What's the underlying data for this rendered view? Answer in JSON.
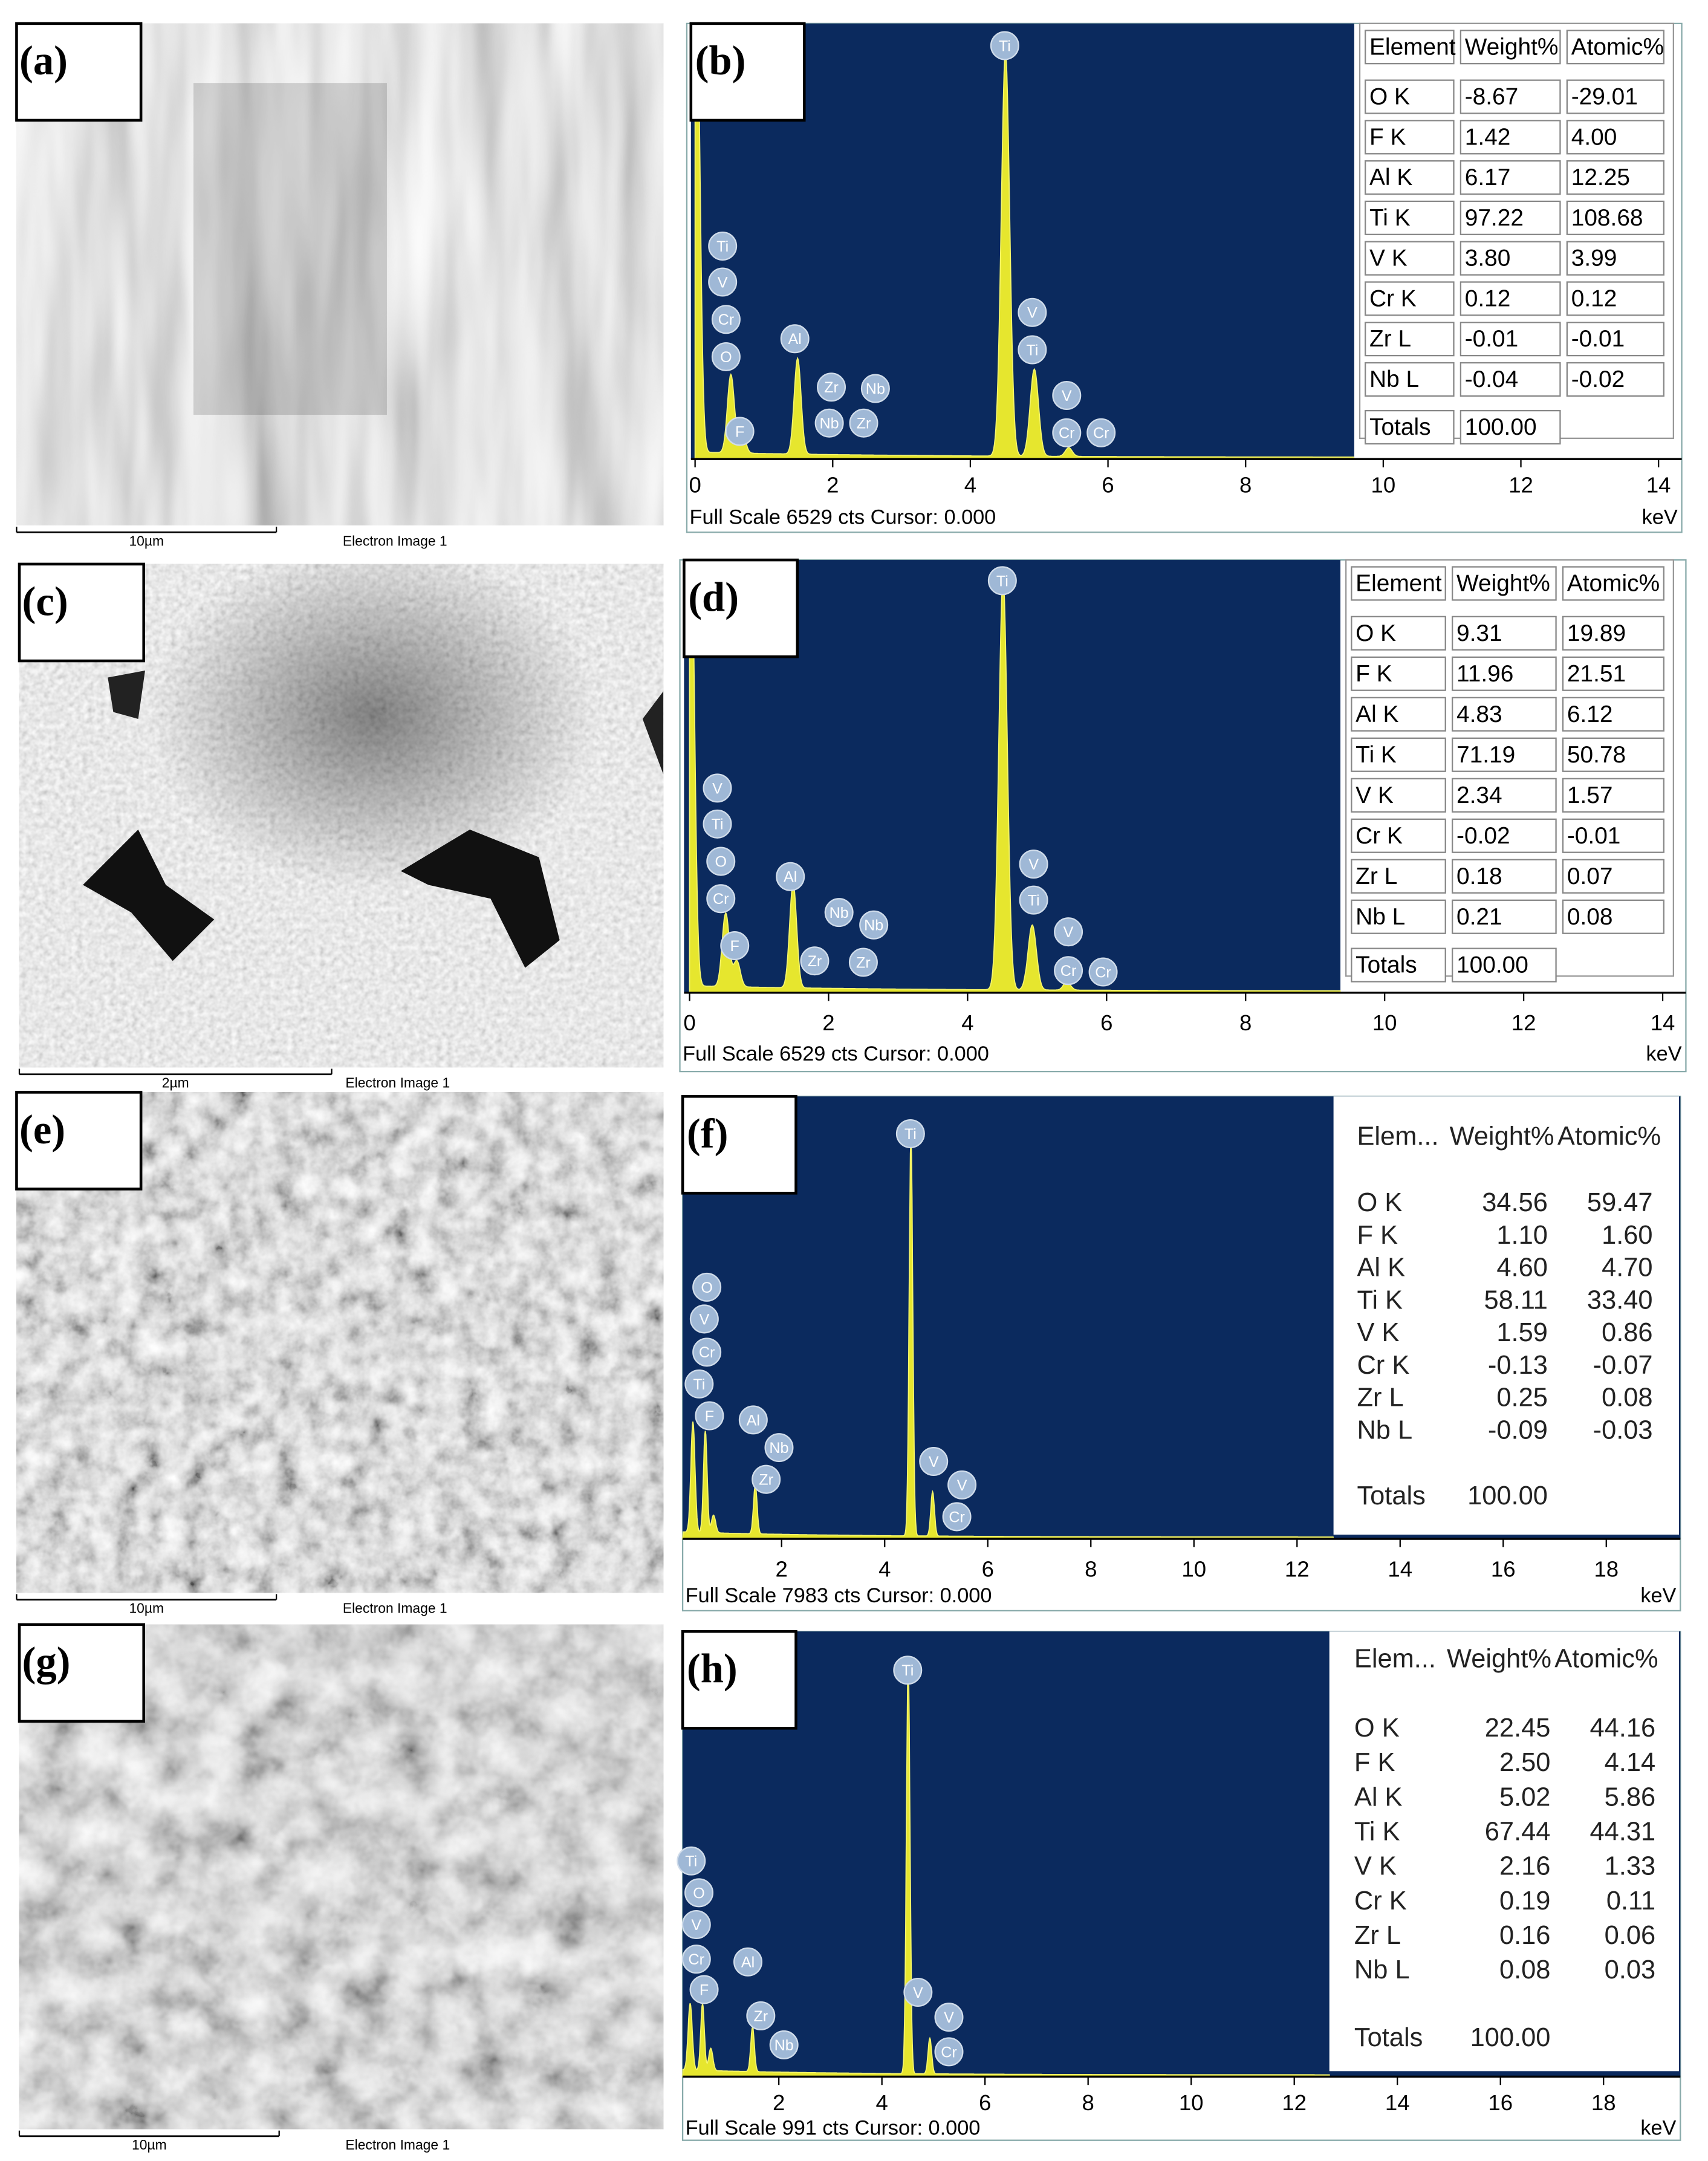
{
  "sem_images": [
    {
      "label": "(a)",
      "scale_bar": "10µm",
      "caption": "Electron Image 1"
    },
    {
      "label": "(c)",
      "scale_bar": "2µm",
      "caption": "Electron Image 1"
    },
    {
      "label": "(e)",
      "scale_bar": "10µm",
      "caption": "Electron Image 1"
    },
    {
      "label": "(g)",
      "scale_bar": "10µm",
      "caption": "Electron Image 1"
    }
  ],
  "spectra": [
    {
      "label": "(b)",
      "xticks": [
        0,
        2,
        4,
        6,
        8,
        10,
        12,
        14
      ],
      "axis_unit": "keV",
      "footer": "Full Scale 6529 cts Cursor: 0.000",
      "peak_labels": [
        "Ti",
        "Ti",
        "V",
        "Cr",
        "O",
        "Al",
        "F",
        "Zr",
        "Nb",
        "Nb",
        "Zr",
        "V",
        "Ti",
        "V",
        "Cr",
        "Cr"
      ],
      "table": {
        "header": [
          "Element",
          "Weight%",
          "Atomic%"
        ],
        "rows": [
          [
            "O K",
            "-8.67",
            "-29.01"
          ],
          [
            "F K",
            "1.42",
            "4.00"
          ],
          [
            "Al K",
            "6.17",
            "12.25"
          ],
          [
            "Ti K",
            "97.22",
            "108.68"
          ],
          [
            "V K",
            "3.80",
            "3.99"
          ],
          [
            "Cr K",
            "0.12",
            "0.12"
          ],
          [
            "Zr L",
            "-0.01",
            "-0.01"
          ],
          [
            "Nb L",
            "-0.04",
            "-0.02"
          ]
        ],
        "totals": [
          "Totals",
          "100.00"
        ]
      }
    },
    {
      "label": "(d)",
      "xticks": [
        0,
        2,
        4,
        6,
        8,
        10,
        12,
        14
      ],
      "axis_unit": "keV",
      "footer": "Full Scale 6529 cts Cursor: 0.000",
      "peak_labels": [
        "Ti",
        "V",
        "Ti",
        "O",
        "Cr",
        "Al",
        "F",
        "Nb",
        "Nb",
        "Zr",
        "Zr",
        "V",
        "Ti",
        "V",
        "Cr",
        "Cr"
      ],
      "table": {
        "header": [
          "Element",
          "Weight%",
          "Atomic%"
        ],
        "rows": [
          [
            "O K",
            "9.31",
            "19.89"
          ],
          [
            "F K",
            "11.96",
            "21.51"
          ],
          [
            "Al K",
            "4.83",
            "6.12"
          ],
          [
            "Ti K",
            "71.19",
            "50.78"
          ],
          [
            "V K",
            "2.34",
            "1.57"
          ],
          [
            "Cr K",
            "-0.02",
            "-0.01"
          ],
          [
            "Zr L",
            "0.18",
            "0.07"
          ],
          [
            "Nb L",
            "0.21",
            "0.08"
          ]
        ],
        "totals": [
          "Totals",
          "100.00"
        ]
      }
    },
    {
      "label": "(f)",
      "xticks": [
        2,
        4,
        6,
        8,
        10,
        12,
        14,
        16,
        18
      ],
      "axis_unit": "keV",
      "footer": "Full Scale 7983 cts Cursor: 0.000",
      "peak_labels": [
        "Ti",
        "O",
        "V",
        "Cr",
        "Ti",
        "F",
        "Al",
        "Nb",
        "Zr",
        "V",
        "V",
        "Cr"
      ],
      "table": {
        "header": [
          "Elem...",
          "Weight%",
          "Atomic%"
        ],
        "rows": [
          [
            "O K",
            "34.56",
            "59.47"
          ],
          [
            "F K",
            "1.10",
            "1.60"
          ],
          [
            "Al K",
            "4.60",
            "4.70"
          ],
          [
            "Ti K",
            "58.11",
            "33.40"
          ],
          [
            "V K",
            "1.59",
            "0.86"
          ],
          [
            "Cr K",
            "-0.13",
            "-0.07"
          ],
          [
            "Zr L",
            "0.25",
            "0.08"
          ],
          [
            "Nb L",
            "-0.09",
            "-0.03"
          ]
        ],
        "totals": [
          "Totals",
          "100.00"
        ]
      }
    },
    {
      "label": "(h)",
      "xticks": [
        2,
        4,
        6,
        8,
        10,
        12,
        14,
        16,
        18
      ],
      "axis_unit": "keV",
      "footer": "Full Scale 991 cts Cursor: 0.000",
      "peak_labels": [
        "Ti",
        "Ti",
        "O",
        "V",
        "Cr",
        "Al",
        "F",
        "Zr",
        "Nb",
        "V",
        "V",
        "Cr"
      ],
      "table": {
        "header": [
          "Elem...",
          "Weight%",
          "Atomic%"
        ],
        "rows": [
          [
            "O K",
            "22.45",
            "44.16"
          ],
          [
            "F K",
            "2.50",
            "4.14"
          ],
          [
            "Al K",
            "5.02",
            "5.86"
          ],
          [
            "Ti K",
            "67.44",
            "44.31"
          ],
          [
            "V K",
            "2.16",
            "1.33"
          ],
          [
            "Cr K",
            "0.19",
            "0.11"
          ],
          [
            "Zr L",
            "0.16",
            "0.06"
          ],
          [
            "Nb L",
            "0.08",
            "0.03"
          ]
        ],
        "totals": [
          "Totals",
          "100.00"
        ]
      }
    }
  ]
}
